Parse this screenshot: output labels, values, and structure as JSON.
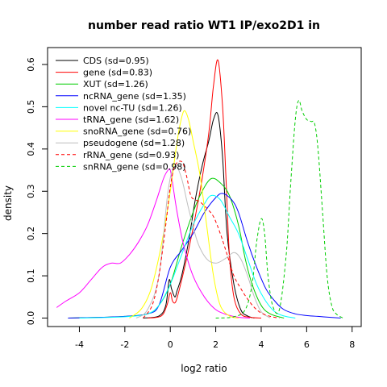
{
  "chart_data": {
    "type": "line",
    "title": "number read ratio WT1 IP/exo2D1 in",
    "xlabel": "log2 ratio",
    "ylabel": "density",
    "xlim": [
      -5.4,
      8.4
    ],
    "ylim": [
      -0.02,
      0.64
    ],
    "x_ticks": [
      -4,
      -2,
      0,
      2,
      4,
      6,
      8
    ],
    "x_tick_labels": [
      "-4",
      "-2",
      "0",
      "2",
      "4",
      "6",
      "8"
    ],
    "y_ticks": [
      0.0,
      0.1,
      0.2,
      0.3,
      0.4,
      0.5,
      0.6
    ],
    "y_tick_labels": [
      "0.0",
      "0.1",
      "0.2",
      "0.3",
      "0.4",
      "0.5",
      "0.6"
    ],
    "grid": false,
    "legend_position": "top-left",
    "series": [
      {
        "name": "CDS (sd=0.95)",
        "color": "#000000",
        "dash": "solid",
        "x": [
          -1.2,
          -0.5,
          -0.2,
          -0.05,
          0.05,
          0.2,
          0.3,
          0.5,
          0.8,
          1.1,
          1.4,
          1.7,
          1.9,
          2.1,
          2.3,
          2.5,
          2.8,
          3.1,
          3.4,
          3.7
        ],
        "y": [
          0.0,
          0.005,
          0.03,
          0.09,
          0.07,
          0.05,
          0.065,
          0.1,
          0.18,
          0.28,
          0.36,
          0.42,
          0.47,
          0.48,
          0.38,
          0.2,
          0.08,
          0.02,
          0.005,
          0.0
        ]
      },
      {
        "name": "gene (sd=0.83)",
        "color": "#ff0000",
        "dash": "solid",
        "x": [
          -1.0,
          -0.4,
          -0.15,
          0.0,
          0.1,
          0.25,
          0.5,
          0.8,
          1.1,
          1.4,
          1.7,
          1.9,
          2.1,
          2.3,
          2.45,
          2.6,
          2.8,
          3.1,
          3.5,
          4.0
        ],
        "y": [
          0.0,
          0.005,
          0.03,
          0.06,
          0.04,
          0.04,
          0.09,
          0.16,
          0.24,
          0.33,
          0.44,
          0.55,
          0.61,
          0.5,
          0.33,
          0.15,
          0.05,
          0.01,
          0.002,
          0.0
        ]
      },
      {
        "name": "XUT (sd=1.26)",
        "color": "#00cd00",
        "dash": "solid",
        "x": [
          -4.5,
          -3.0,
          -2.0,
          -1.0,
          -0.5,
          0.0,
          0.5,
          1.0,
          1.4,
          1.8,
          2.2,
          2.6,
          3.0,
          3.3,
          3.6,
          4.0,
          4.4,
          5.0
        ],
        "y": [
          0.0,
          0.002,
          0.004,
          0.01,
          0.03,
          0.08,
          0.17,
          0.25,
          0.3,
          0.33,
          0.32,
          0.29,
          0.22,
          0.14,
          0.08,
          0.03,
          0.01,
          0.0
        ]
      },
      {
        "name": "ncRNA_gene (sd=1.35)",
        "color": "#0000ff",
        "dash": "solid",
        "x": [
          -4.5,
          -3.0,
          -2.0,
          -1.0,
          -0.5,
          0.0,
          0.5,
          1.0,
          1.5,
          2.0,
          2.3,
          2.7,
          3.0,
          3.4,
          3.8,
          4.2,
          4.6,
          5.0,
          5.5,
          6.0,
          6.5,
          7.0,
          7.5
        ],
        "y": [
          0.0,
          0.002,
          0.004,
          0.01,
          0.03,
          0.12,
          0.16,
          0.2,
          0.25,
          0.285,
          0.295,
          0.28,
          0.25,
          0.18,
          0.12,
          0.07,
          0.04,
          0.02,
          0.01,
          0.006,
          0.004,
          0.002,
          0.0
        ]
      },
      {
        "name": "novel nc-TU (sd=1.26)",
        "color": "#00ffff",
        "dash": "solid",
        "x": [
          -4.0,
          -2.0,
          -1.0,
          -0.5,
          0.0,
          0.5,
          1.0,
          1.5,
          1.8,
          2.2,
          2.6,
          3.0,
          3.4,
          3.8,
          4.2,
          4.6,
          5.0,
          5.5
        ],
        "y": [
          0.0,
          0.003,
          0.01,
          0.03,
          0.08,
          0.15,
          0.22,
          0.27,
          0.29,
          0.28,
          0.24,
          0.2,
          0.14,
          0.08,
          0.04,
          0.015,
          0.005,
          0.0
        ]
      },
      {
        "name": "tRNA_gene (sd=1.62)",
        "color": "#ff00ff",
        "dash": "solid",
        "x": [
          -5.0,
          -4.6,
          -4.0,
          -3.5,
          -3.0,
          -2.6,
          -2.2,
          -1.8,
          -1.4,
          -1.0,
          -0.6,
          -0.3,
          -0.1,
          0.0,
          0.1,
          0.3,
          0.6,
          1.0,
          1.5,
          2.0,
          2.5,
          3.0,
          3.5
        ],
        "y": [
          0.025,
          0.04,
          0.06,
          0.09,
          0.12,
          0.13,
          0.13,
          0.15,
          0.18,
          0.22,
          0.28,
          0.33,
          0.35,
          0.35,
          0.32,
          0.25,
          0.17,
          0.1,
          0.05,
          0.02,
          0.008,
          0.002,
          0.0
        ]
      },
      {
        "name": "snoRNA_gene (sd=0.76)",
        "color": "#ffff00",
        "dash": "solid",
        "x": [
          -1.8,
          -1.3,
          -0.9,
          -0.6,
          -0.3,
          0.0,
          0.2,
          0.4,
          0.6,
          0.8,
          1.0,
          1.3,
          1.6,
          1.9,
          2.2,
          2.6,
          3.0
        ],
        "y": [
          0.0,
          0.02,
          0.06,
          0.12,
          0.2,
          0.3,
          0.38,
          0.45,
          0.49,
          0.47,
          0.42,
          0.34,
          0.22,
          0.1,
          0.03,
          0.005,
          0.0
        ]
      },
      {
        "name": "pseudogene (sd=1.28)",
        "color": "#bebebe",
        "dash": "solid",
        "x": [
          -1.5,
          -1.0,
          -0.5,
          -0.1,
          0.2,
          0.5,
          0.8,
          1.2,
          1.6,
          2.0,
          2.4,
          2.8,
          3.1,
          3.4,
          3.7,
          4.0,
          4.4
        ],
        "y": [
          0.0,
          0.02,
          0.1,
          0.3,
          0.36,
          0.33,
          0.26,
          0.18,
          0.14,
          0.13,
          0.14,
          0.155,
          0.14,
          0.1,
          0.05,
          0.015,
          0.0
        ]
      },
      {
        "name": "rRNA_gene (sd=0.93)",
        "color": "#ff0000",
        "dash": "dashed",
        "x": [
          -1.2,
          -0.8,
          -0.5,
          -0.2,
          0.0,
          0.2,
          0.5,
          0.7,
          0.9,
          1.1,
          1.3,
          1.6,
          1.9,
          2.2,
          2.5,
          2.8,
          3.1,
          3.4,
          3.7,
          4.0,
          4.4,
          4.8
        ],
        "y": [
          0.0,
          0.03,
          0.1,
          0.22,
          0.31,
          0.36,
          0.37,
          0.34,
          0.29,
          0.28,
          0.275,
          0.26,
          0.24,
          0.2,
          0.15,
          0.1,
          0.07,
          0.045,
          0.025,
          0.012,
          0.004,
          0.0
        ]
      },
      {
        "name": "snRNA_gene (sd=0.98)",
        "color": "#00cd00",
        "dash": "dashed",
        "x": [
          2.0,
          2.8,
          3.3,
          3.6,
          3.8,
          4.0,
          4.15,
          4.3,
          4.5,
          4.8,
          5.1,
          5.3,
          5.5,
          5.65,
          5.8,
          6.0,
          6.2,
          6.35,
          6.5,
          6.7,
          6.9,
          7.1,
          7.3,
          7.6
        ],
        "y": [
          0.0,
          0.003,
          0.02,
          0.08,
          0.18,
          0.235,
          0.2,
          0.1,
          0.03,
          0.02,
          0.15,
          0.32,
          0.47,
          0.515,
          0.49,
          0.47,
          0.465,
          0.46,
          0.4,
          0.25,
          0.1,
          0.03,
          0.01,
          0.0
        ]
      }
    ]
  }
}
